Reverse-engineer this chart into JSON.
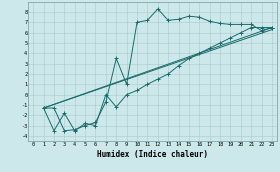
{
  "xlabel": "Humidex (Indice chaleur)",
  "bg_color": "#cce8ea",
  "line_color": "#1a6b6b",
  "xlim": [
    -0.5,
    23.5
  ],
  "ylim": [
    -4.5,
    9.0
  ],
  "grid_color": "#aac8cc",
  "xticks": [
    0,
    1,
    2,
    3,
    4,
    5,
    6,
    7,
    8,
    9,
    10,
    11,
    12,
    13,
    14,
    15,
    16,
    17,
    18,
    19,
    20,
    21,
    22,
    23
  ],
  "yticks": [
    -4,
    -3,
    -2,
    -1,
    0,
    1,
    2,
    3,
    4,
    5,
    6,
    7,
    8
  ],
  "line1_x": [
    1,
    2,
    3,
    4,
    5,
    6,
    7,
    8,
    9,
    10,
    11,
    12,
    13,
    14,
    15,
    16,
    17,
    18,
    19,
    20,
    21,
    22,
    23
  ],
  "line1_y": [
    -1.3,
    -1.3,
    -3.5,
    -3.4,
    -3.0,
    -2.7,
    -0.7,
    3.5,
    1.0,
    7.0,
    7.2,
    8.3,
    7.2,
    7.3,
    7.6,
    7.5,
    7.1,
    6.9,
    6.8,
    6.8,
    6.8,
    6.2,
    6.5
  ],
  "line2_x": [
    1,
    2,
    3,
    4,
    5,
    6,
    7,
    8,
    9,
    10,
    11,
    12,
    13,
    14,
    15,
    16,
    17,
    18,
    19,
    20,
    21,
    22,
    23
  ],
  "line2_y": [
    -1.3,
    -3.5,
    -1.8,
    -3.5,
    -2.8,
    -3.0,
    0.0,
    -1.2,
    0.0,
    0.4,
    1.0,
    1.5,
    2.0,
    2.8,
    3.5,
    4.0,
    4.5,
    5.0,
    5.5,
    6.0,
    6.5,
    6.5,
    6.5
  ],
  "line3_x": [
    1,
    23
  ],
  "line3_y": [
    -1.3,
    6.5
  ],
  "line4_x": [
    1,
    23
  ],
  "line4_y": [
    -1.3,
    6.5
  ]
}
